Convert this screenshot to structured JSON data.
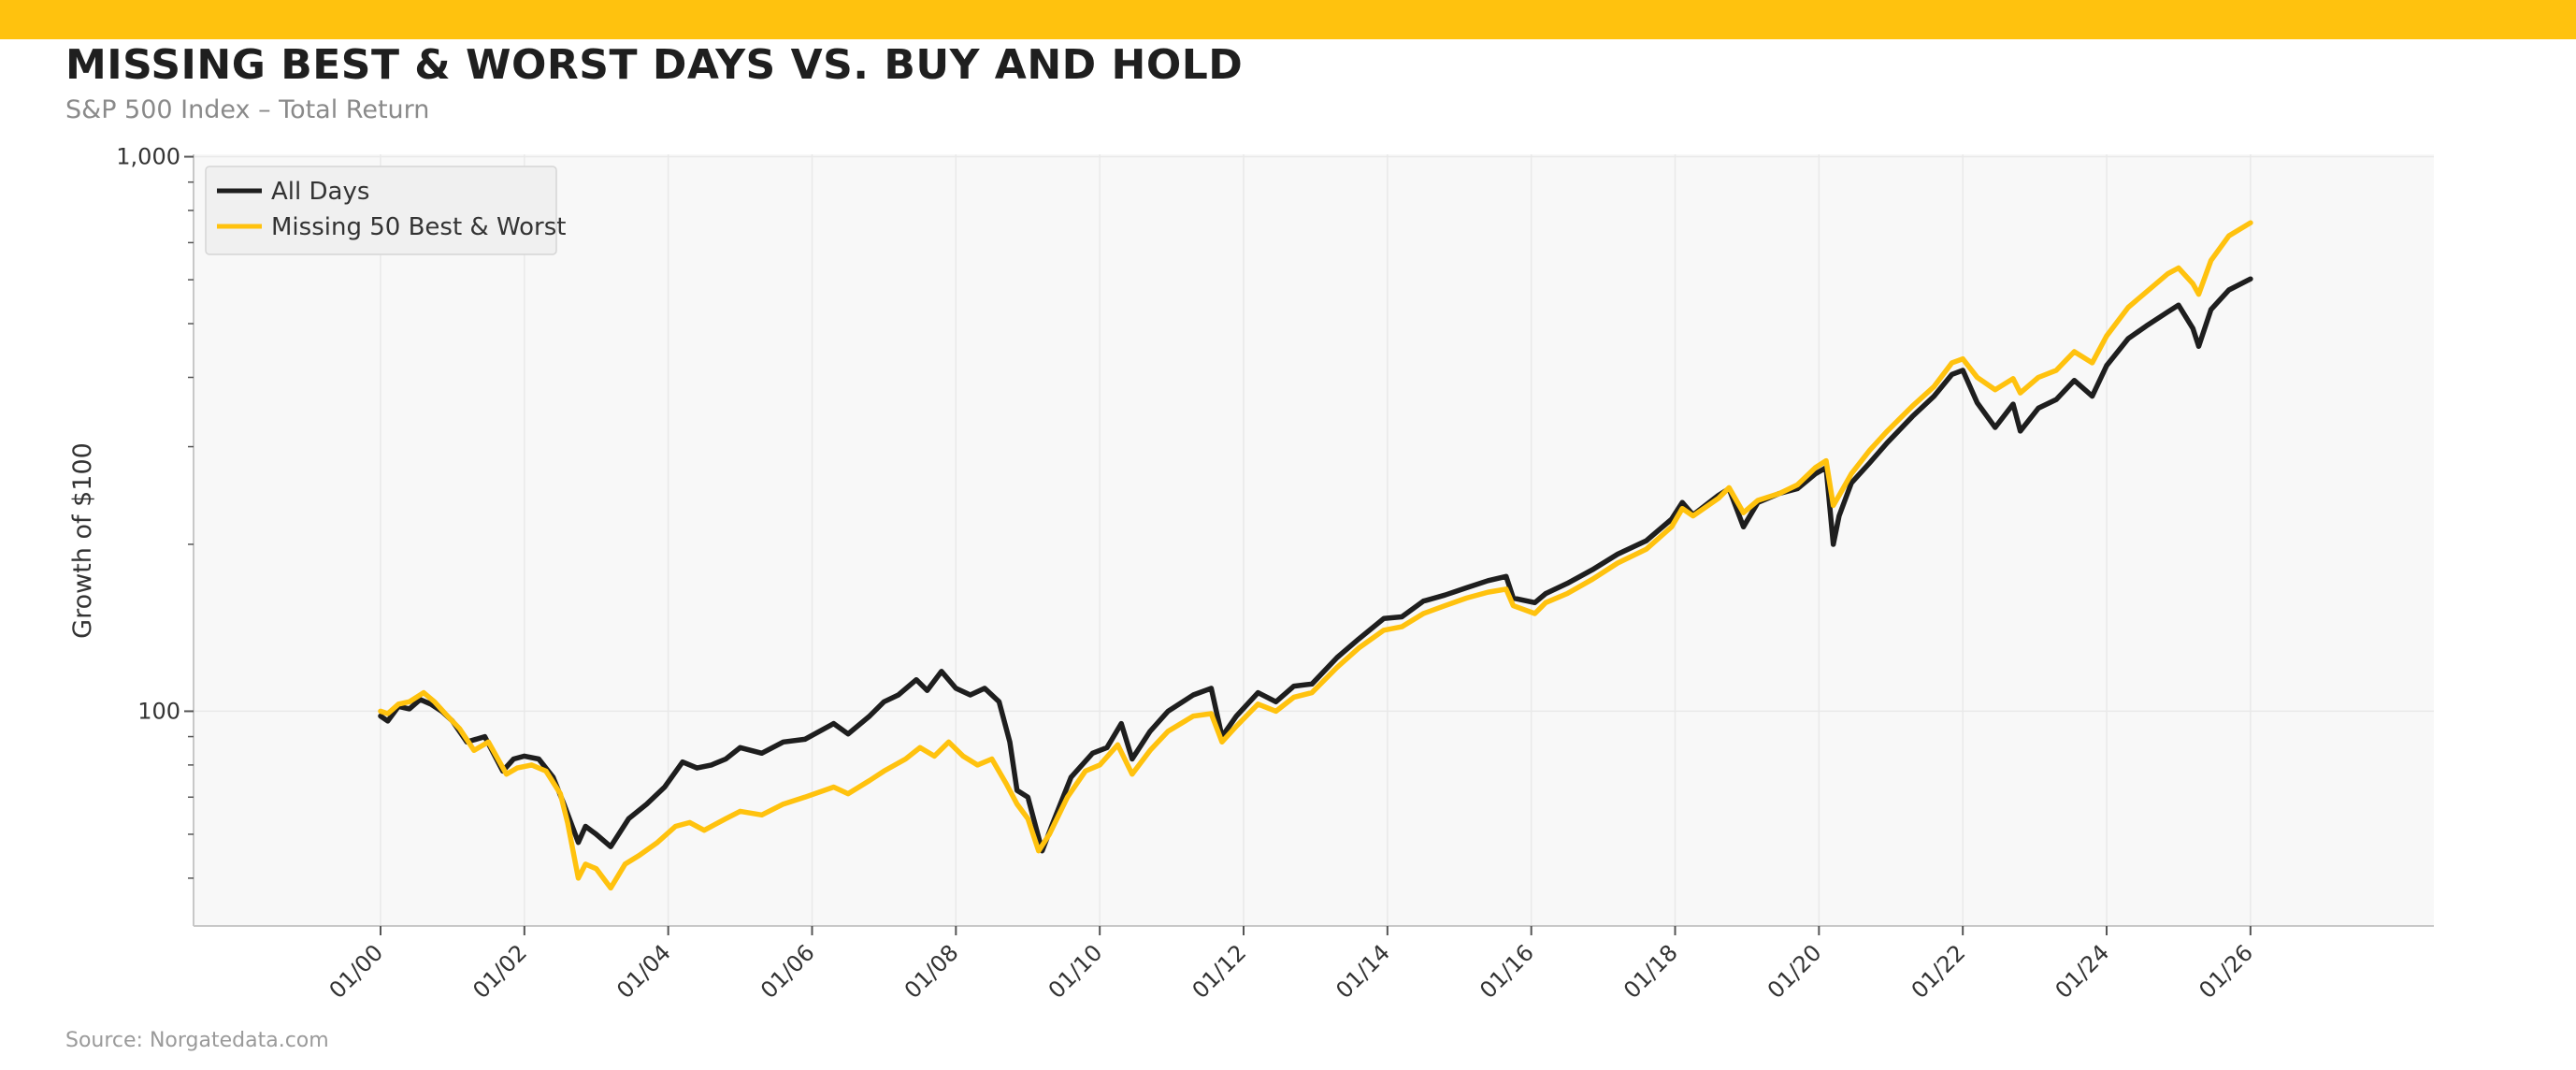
{
  "title": "MISSING BEST & WORST DAYS VS. BUY AND HOLD",
  "subtitle": "S&P 500 Index – Total Return",
  "source": "Source: Norgatedata.com",
  "colors": {
    "accent_bar": "#FFC20E",
    "all_days": "#1e1e1e",
    "missing": "#FFC20E",
    "plot_bg": "#f8f8f8",
    "grid": "#e9e9e9",
    "axis": "#c8c8c8"
  },
  "chart_data": {
    "type": "line",
    "title": "MISSING BEST & WORST DAYS VS. BUY AND HOLD",
    "subtitle": "S&P 500 Index – Total Return",
    "xlabel": "",
    "ylabel": "Growth of $100",
    "yscale": "log",
    "ylim": [
      41,
      1010
    ],
    "xlim": [
      1997.4,
      2028.55
    ],
    "x_ticks": [
      {
        "value": 2000,
        "label": "01/00"
      },
      {
        "value": 2002,
        "label": "01/02"
      },
      {
        "value": 2004,
        "label": "01/04"
      },
      {
        "value": 2006,
        "label": "01/06"
      },
      {
        "value": 2008,
        "label": "01/08"
      },
      {
        "value": 2010,
        "label": "01/10"
      },
      {
        "value": 2012,
        "label": "01/12"
      },
      {
        "value": 2014,
        "label": "01/14"
      },
      {
        "value": 2016,
        "label": "01/16"
      },
      {
        "value": 2018,
        "label": "01/18"
      },
      {
        "value": 2020,
        "label": "01/20"
      },
      {
        "value": 2022,
        "label": "01/22"
      },
      {
        "value": 2024,
        "label": "01/24"
      },
      {
        "value": 2026,
        "label": "01/26"
      }
    ],
    "y_major_ticks": [
      {
        "value": 100,
        "label": "100"
      },
      {
        "value": 1000,
        "label": "1,000"
      }
    ],
    "y_minor_ticks": [
      50,
      60,
      70,
      80,
      90,
      200,
      300,
      400,
      500,
      600,
      700,
      800,
      900
    ],
    "legend_position": "top-left",
    "grid": true,
    "series": [
      {
        "name": "All Days",
        "color": "#1e1e1e",
        "points": [
          [
            2000.0,
            98
          ],
          [
            2000.1,
            96
          ],
          [
            2000.25,
            102
          ],
          [
            2000.4,
            101
          ],
          [
            2000.55,
            105
          ],
          [
            2000.7,
            103
          ],
          [
            2000.85,
            100
          ],
          [
            2001.0,
            96
          ],
          [
            2001.2,
            88
          ],
          [
            2001.45,
            90
          ],
          [
            2001.7,
            78
          ],
          [
            2001.85,
            82
          ],
          [
            2002.0,
            83
          ],
          [
            2002.2,
            82
          ],
          [
            2002.4,
            76
          ],
          [
            2002.55,
            68
          ],
          [
            2002.75,
            58
          ],
          [
            2002.85,
            62
          ],
          [
            2003.0,
            60
          ],
          [
            2003.2,
            57
          ],
          [
            2003.45,
            64
          ],
          [
            2003.7,
            68
          ],
          [
            2003.95,
            73
          ],
          [
            2004.2,
            81
          ],
          [
            2004.4,
            79
          ],
          [
            2004.6,
            80
          ],
          [
            2004.8,
            82
          ],
          [
            2005.0,
            86
          ],
          [
            2005.3,
            84
          ],
          [
            2005.6,
            88
          ],
          [
            2005.9,
            89
          ],
          [
            2006.3,
            95
          ],
          [
            2006.5,
            91
          ],
          [
            2006.8,
            98
          ],
          [
            2007.0,
            104
          ],
          [
            2007.2,
            107
          ],
          [
            2007.45,
            114
          ],
          [
            2007.6,
            109
          ],
          [
            2007.8,
            118
          ],
          [
            2008.0,
            110
          ],
          [
            2008.2,
            107
          ],
          [
            2008.4,
            110
          ],
          [
            2008.6,
            104
          ],
          [
            2008.75,
            88
          ],
          [
            2008.85,
            72
          ],
          [
            2009.0,
            70
          ],
          [
            2009.2,
            56
          ],
          [
            2009.35,
            63
          ],
          [
            2009.6,
            76
          ],
          [
            2009.9,
            84
          ],
          [
            2010.1,
            86
          ],
          [
            2010.3,
            95
          ],
          [
            2010.45,
            82
          ],
          [
            2010.7,
            92
          ],
          [
            2010.95,
            100
          ],
          [
            2011.3,
            107
          ],
          [
            2011.55,
            110
          ],
          [
            2011.7,
            90
          ],
          [
            2011.9,
            98
          ],
          [
            2012.2,
            108
          ],
          [
            2012.45,
            104
          ],
          [
            2012.7,
            111
          ],
          [
            2012.95,
            112
          ],
          [
            2013.3,
            125
          ],
          [
            2013.6,
            135
          ],
          [
            2013.95,
            147
          ],
          [
            2014.2,
            148
          ],
          [
            2014.5,
            158
          ],
          [
            2014.8,
            162
          ],
          [
            2015.1,
            167
          ],
          [
            2015.4,
            172
          ],
          [
            2015.65,
            175
          ],
          [
            2015.75,
            160
          ],
          [
            2016.05,
            157
          ],
          [
            2016.2,
            163
          ],
          [
            2016.5,
            170
          ],
          [
            2016.85,
            180
          ],
          [
            2017.2,
            192
          ],
          [
            2017.6,
            203
          ],
          [
            2017.95,
            222
          ],
          [
            2018.1,
            238
          ],
          [
            2018.25,
            226
          ],
          [
            2018.6,
            245
          ],
          [
            2018.75,
            252
          ],
          [
            2018.95,
            215
          ],
          [
            2019.15,
            238
          ],
          [
            2019.45,
            247
          ],
          [
            2019.7,
            252
          ],
          [
            2019.95,
            268
          ],
          [
            2020.1,
            275
          ],
          [
            2020.2,
            200
          ],
          [
            2020.28,
            225
          ],
          [
            2020.45,
            258
          ],
          [
            2020.7,
            280
          ],
          [
            2020.95,
            305
          ],
          [
            2021.3,
            340
          ],
          [
            2021.6,
            370
          ],
          [
            2021.85,
            405
          ],
          [
            2022.0,
            412
          ],
          [
            2022.2,
            360
          ],
          [
            2022.45,
            325
          ],
          [
            2022.7,
            358
          ],
          [
            2022.8,
            320
          ],
          [
            2023.05,
            352
          ],
          [
            2023.3,
            365
          ],
          [
            2023.55,
            395
          ],
          [
            2023.8,
            370
          ],
          [
            2024.0,
            420
          ],
          [
            2024.3,
            470
          ],
          [
            2024.55,
            495
          ],
          [
            2024.85,
            525
          ],
          [
            2025.0,
            540
          ],
          [
            2025.2,
            490
          ],
          [
            2025.28,
            455
          ],
          [
            2025.45,
            530
          ],
          [
            2025.7,
            575
          ],
          [
            2026.0,
            602
          ]
        ]
      },
      {
        "name": "Missing 50 Best & Worst",
        "color": "#FFC20E",
        "points": [
          [
            2000.0,
            100
          ],
          [
            2000.1,
            99
          ],
          [
            2000.25,
            103
          ],
          [
            2000.4,
            104
          ],
          [
            2000.6,
            108
          ],
          [
            2000.75,
            104
          ],
          [
            2000.9,
            99
          ],
          [
            2001.1,
            93
          ],
          [
            2001.3,
            85
          ],
          [
            2001.5,
            88
          ],
          [
            2001.75,
            77
          ],
          [
            2001.9,
            79
          ],
          [
            2002.1,
            80
          ],
          [
            2002.3,
            78
          ],
          [
            2002.5,
            71
          ],
          [
            2002.6,
            63
          ],
          [
            2002.75,
            50
          ],
          [
            2002.85,
            53
          ],
          [
            2003.0,
            52
          ],
          [
            2003.2,
            48
          ],
          [
            2003.4,
            53
          ],
          [
            2003.6,
            55
          ],
          [
            2003.85,
            58
          ],
          [
            2004.1,
            62
          ],
          [
            2004.3,
            63
          ],
          [
            2004.5,
            61
          ],
          [
            2004.8,
            64
          ],
          [
            2005.0,
            66
          ],
          [
            2005.3,
            65
          ],
          [
            2005.6,
            68
          ],
          [
            2005.9,
            70
          ],
          [
            2006.3,
            73
          ],
          [
            2006.5,
            71
          ],
          [
            2006.8,
            75
          ],
          [
            2007.0,
            78
          ],
          [
            2007.3,
            82
          ],
          [
            2007.5,
            86
          ],
          [
            2007.7,
            83
          ],
          [
            2007.9,
            88
          ],
          [
            2008.1,
            83
          ],
          [
            2008.3,
            80
          ],
          [
            2008.5,
            82
          ],
          [
            2008.7,
            74
          ],
          [
            2008.85,
            68
          ],
          [
            2009.0,
            64
          ],
          [
            2009.15,
            56
          ],
          [
            2009.3,
            60
          ],
          [
            2009.55,
            70
          ],
          [
            2009.8,
            78
          ],
          [
            2010.0,
            80
          ],
          [
            2010.25,
            87
          ],
          [
            2010.45,
            77
          ],
          [
            2010.7,
            85
          ],
          [
            2010.95,
            92
          ],
          [
            2011.3,
            98
          ],
          [
            2011.55,
            99
          ],
          [
            2011.7,
            88
          ],
          [
            2011.9,
            94
          ],
          [
            2012.2,
            103
          ],
          [
            2012.45,
            100
          ],
          [
            2012.7,
            106
          ],
          [
            2012.95,
            108
          ],
          [
            2013.3,
            120
          ],
          [
            2013.6,
            130
          ],
          [
            2013.95,
            140
          ],
          [
            2014.2,
            142
          ],
          [
            2014.5,
            150
          ],
          [
            2014.8,
            155
          ],
          [
            2015.1,
            160
          ],
          [
            2015.4,
            164
          ],
          [
            2015.65,
            166
          ],
          [
            2015.75,
            155
          ],
          [
            2016.05,
            150
          ],
          [
            2016.2,
            157
          ],
          [
            2016.5,
            163
          ],
          [
            2016.85,
            173
          ],
          [
            2017.2,
            185
          ],
          [
            2017.6,
            196
          ],
          [
            2017.95,
            215
          ],
          [
            2018.1,
            232
          ],
          [
            2018.25,
            225
          ],
          [
            2018.6,
            242
          ],
          [
            2018.75,
            253
          ],
          [
            2018.95,
            228
          ],
          [
            2019.15,
            240
          ],
          [
            2019.45,
            247
          ],
          [
            2019.7,
            256
          ],
          [
            2019.95,
            275
          ],
          [
            2020.1,
            283
          ],
          [
            2020.2,
            235
          ],
          [
            2020.28,
            245
          ],
          [
            2020.45,
            268
          ],
          [
            2020.7,
            295
          ],
          [
            2020.95,
            320
          ],
          [
            2021.3,
            355
          ],
          [
            2021.6,
            385
          ],
          [
            2021.85,
            425
          ],
          [
            2022.0,
            432
          ],
          [
            2022.2,
            400
          ],
          [
            2022.45,
            380
          ],
          [
            2022.7,
            398
          ],
          [
            2022.8,
            375
          ],
          [
            2023.05,
            400
          ],
          [
            2023.3,
            412
          ],
          [
            2023.55,
            445
          ],
          [
            2023.8,
            425
          ],
          [
            2024.0,
            475
          ],
          [
            2024.3,
            535
          ],
          [
            2024.55,
            570
          ],
          [
            2024.85,
            615
          ],
          [
            2025.0,
            630
          ],
          [
            2025.2,
            590
          ],
          [
            2025.28,
            565
          ],
          [
            2025.45,
            650
          ],
          [
            2025.7,
            720
          ],
          [
            2026.0,
            760
          ]
        ]
      }
    ]
  }
}
